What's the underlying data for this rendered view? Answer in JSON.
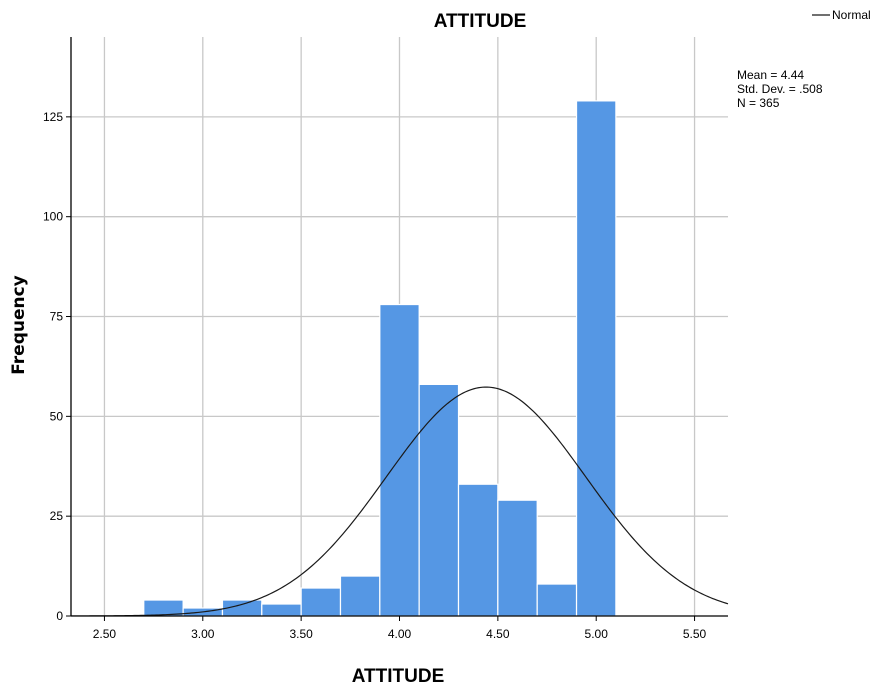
{
  "chart_data": {
    "type": "bar",
    "subtype": "histogram",
    "title": "ATTITUDE",
    "xlabel": "ATTITUDE",
    "ylabel": "Frequency",
    "xlim": [
      2.33,
      5.67
    ],
    "ylim": [
      0,
      145
    ],
    "x_ticks": [
      "2.50",
      "3.00",
      "3.50",
      "4.00",
      "4.50",
      "5.00",
      "5.50"
    ],
    "x_tick_values": [
      2.5,
      3.0,
      3.5,
      4.0,
      4.5,
      5.0,
      5.5
    ],
    "y_ticks": [
      "0",
      "25",
      "50",
      "75",
      "100",
      "125"
    ],
    "y_tick_values": [
      0,
      25,
      50,
      75,
      100,
      125
    ],
    "bin_width": 0.2,
    "bins": [
      {
        "start": 2.7,
        "end": 2.9,
        "count": 4
      },
      {
        "start": 2.9,
        "end": 3.1,
        "count": 2
      },
      {
        "start": 3.1,
        "end": 3.3,
        "count": 4
      },
      {
        "start": 3.3,
        "end": 3.5,
        "count": 3
      },
      {
        "start": 3.5,
        "end": 3.7,
        "count": 7
      },
      {
        "start": 3.7,
        "end": 3.9,
        "count": 10
      },
      {
        "start": 3.9,
        "end": 4.1,
        "count": 78
      },
      {
        "start": 4.1,
        "end": 4.3,
        "count": 58
      },
      {
        "start": 4.3,
        "end": 4.5,
        "count": 33
      },
      {
        "start": 4.5,
        "end": 4.7,
        "count": 29
      },
      {
        "start": 4.7,
        "end": 4.9,
        "count": 8
      },
      {
        "start": 4.9,
        "end": 5.1,
        "count": 129
      }
    ],
    "normal_curve": {
      "mean": 4.44,
      "std_dev": 0.508,
      "n": 365
    },
    "grid": true,
    "colors": {
      "bar": "#5597e4",
      "bar_edge": "#ffffff",
      "grid": "#c8c8c8",
      "curve": "#1a1a1a",
      "axis": "#000000"
    },
    "stats_text": [
      "Mean = 4.44",
      "Std. Dev. = .508",
      "N = 365"
    ],
    "legend": {
      "entries": [
        "Normal"
      ],
      "placement": "top-right"
    }
  }
}
